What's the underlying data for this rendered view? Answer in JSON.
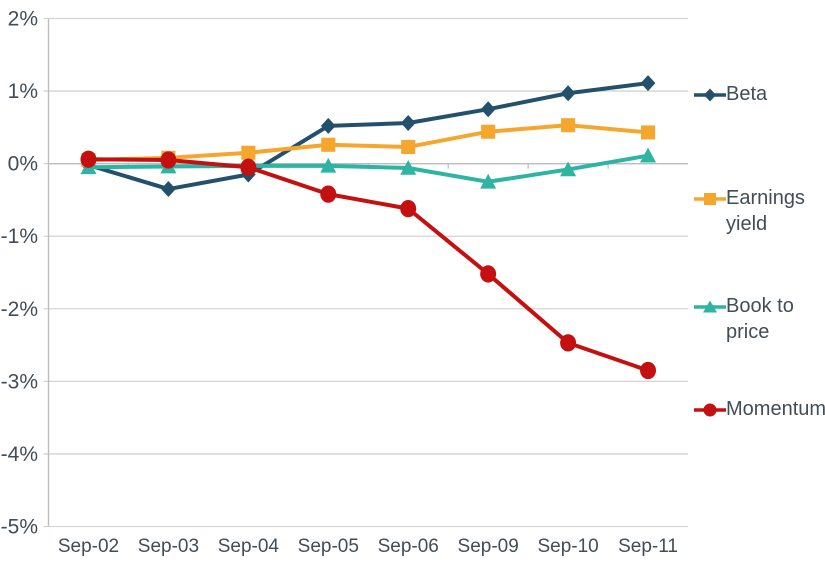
{
  "chart_data": {
    "type": "line",
    "title": "",
    "xlabel": "",
    "ylabel": "",
    "categories": [
      "Sep-02",
      "Sep-03",
      "Sep-04",
      "Sep-05",
      "Sep-06",
      "Sep-09",
      "Sep-10",
      "Sep-11"
    ],
    "series": [
      {
        "name": "Beta",
        "legend_lines": [
          "Beta"
        ],
        "marker": "diamond",
        "color": "#23506b",
        "values": [
          -0.02,
          -0.35,
          -0.15,
          0.52,
          0.56,
          0.75,
          0.97,
          1.11
        ]
      },
      {
        "name": "Earnings yield",
        "legend_lines": [
          "Earnings",
          "yield"
        ],
        "marker": "square",
        "color": "#f5a62e",
        "values": [
          0.05,
          0.08,
          0.15,
          0.26,
          0.23,
          0.44,
          0.53,
          0.43
        ]
      },
      {
        "name": "Book to price",
        "legend_lines": [
          "Book to",
          "price"
        ],
        "marker": "triangle",
        "color": "#2db4a3",
        "values": [
          -0.05,
          -0.04,
          -0.03,
          -0.03,
          -0.06,
          -0.25,
          -0.08,
          0.11
        ]
      },
      {
        "name": "Momentum",
        "legend_lines": [
          "Momentum"
        ],
        "marker": "circle",
        "color": "#c41010",
        "values": [
          0.06,
          0.05,
          -0.05,
          -0.42,
          -0.62,
          -1.52,
          -2.47,
          -2.85
        ]
      }
    ],
    "y_ticks": [
      "2%",
      "1%",
      "0%",
      "-1%",
      "-2%",
      "-3%",
      "-4%",
      "-5%"
    ],
    "ylim": [
      -5,
      2
    ],
    "grid": true,
    "legend_position": "right",
    "axis_text_color": "#424d56",
    "gridline_color": "#d4d4d4",
    "axis_line_color": "#bdbdbd"
  }
}
